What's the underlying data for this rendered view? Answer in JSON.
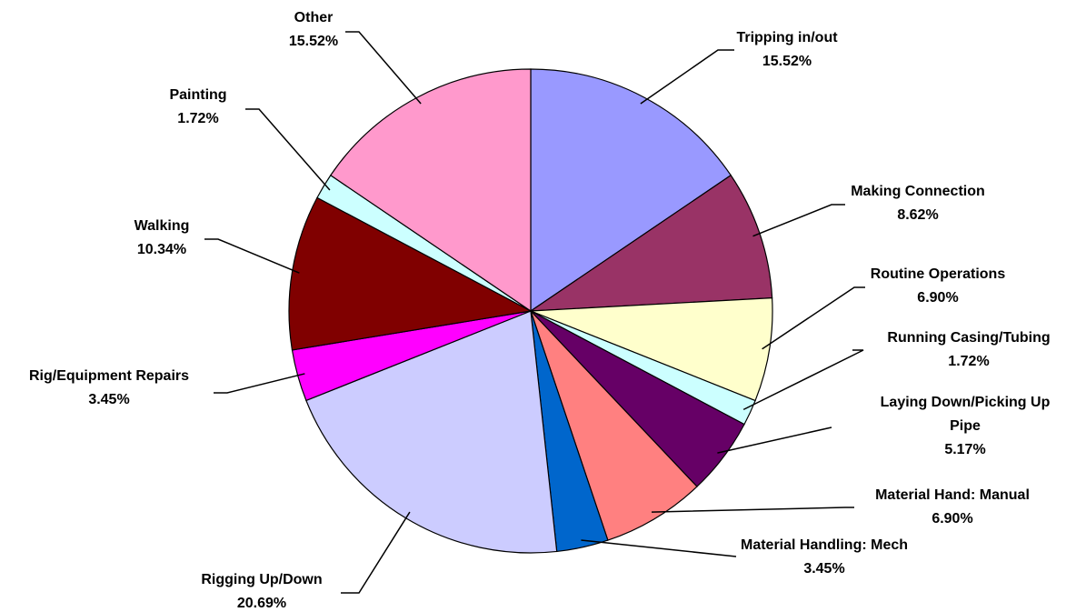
{
  "chart_data": {
    "type": "pie",
    "categories": [
      "Tripping in/out",
      "Making Connection",
      "Routine Operations",
      "Running Casing/Tubing",
      "Laying Down/Picking Up Pipe",
      "Material Hand: Manual",
      "Material Handling: Mech",
      "Rigging Up/Down",
      "Rig/Equipment Repairs",
      "Walking",
      "Painting",
      "Other"
    ],
    "values": [
      15.52,
      8.62,
      6.9,
      1.72,
      5.17,
      6.9,
      3.45,
      20.69,
      3.45,
      10.34,
      1.72,
      15.52
    ],
    "value_labels": [
      "15.52%",
      "8.62%",
      "6.90%",
      "1.72%",
      "5.17%",
      "6.90%",
      "3.45%",
      "20.69%",
      "3.45%",
      "10.34%",
      "1.72%",
      "15.52%"
    ],
    "colors": [
      "#9999ff",
      "#993366",
      "#ffffcc",
      "#ccffff",
      "#660066",
      "#ff8080",
      "#0066cc",
      "#ccccff",
      "#ff00ff",
      "#800000",
      "#ccffff",
      "#ff99cc"
    ]
  }
}
